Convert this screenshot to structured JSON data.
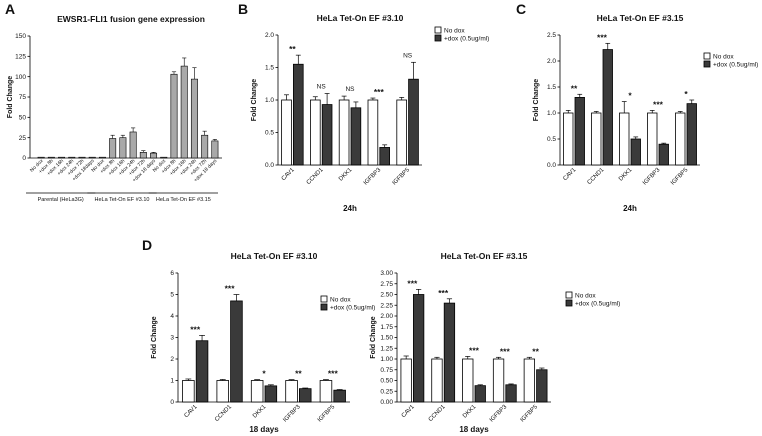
{
  "panel_labels": [
    "A",
    "B",
    "C",
    "D"
  ],
  "colors": {
    "ctrl": "#ffffff",
    "dox": "#3a3a3a",
    "gray": "#a9a9a9",
    "axis": "#000000"
  },
  "chart_data": [
    {
      "id": "A",
      "type": "bar",
      "title": "EWSR1-FLI1 fusion gene expression",
      "ylabel": "Fold Change",
      "xlabel": "",
      "ylim": [
        0,
        150
      ],
      "yticks": [
        0,
        25,
        50,
        75,
        100,
        125,
        150
      ],
      "categories": [
        "No dox",
        "+dox 8h",
        "+dox 16h",
        "+dox 24h",
        "+dox 72h",
        "+dox 18days",
        "No dox",
        "+dox 8h",
        "+dox 16h",
        "+dox 24h",
        "+dox 72h",
        "+dox 18 days",
        "No dox",
        "+dox 8h",
        "+dox 16h",
        "+dox 24h",
        "+dox 72h",
        "+dox 18 days"
      ],
      "values": [
        1,
        1,
        1,
        1,
        1,
        1,
        1,
        24,
        25,
        32,
        7,
        6,
        1,
        103,
        113,
        97,
        28,
        21
      ],
      "errors": [
        0,
        0,
        0,
        0,
        0,
        0,
        0,
        4,
        3,
        5,
        2,
        1,
        0,
        3,
        10,
        14,
        5,
        2
      ],
      "groups": [
        "Parental (HeLa3G)",
        "HeLa Tet-On EF #3.10",
        "HeLa Tet-On EF #3.15"
      ]
    },
    {
      "id": "B",
      "type": "bar",
      "title": "HeLa Tet-On EF #3.10",
      "ylabel": "Fold Change",
      "xlabel": "24h",
      "ylim": [
        0,
        2.0
      ],
      "yticks": [
        "0.0",
        "0.5",
        "1.0",
        "1.5",
        "2.0"
      ],
      "categories": [
        "CAV1",
        "CCND1",
        "DKK1",
        "IGFBP3",
        "IGFBP5"
      ],
      "series": [
        {
          "name": "No dox",
          "values": [
            1.0,
            1.0,
            1.0,
            1.0,
            1.0
          ],
          "errors": [
            0.08,
            0.05,
            0.06,
            0.03,
            0.04
          ]
        },
        {
          "name": "+dox (0.5ug/ml)",
          "values": [
            1.55,
            0.93,
            0.88,
            0.27,
            1.32
          ],
          "errors": [
            0.14,
            0.17,
            0.09,
            0.04,
            0.26
          ]
        }
      ],
      "significance": [
        "**",
        "NS",
        "NS",
        "***",
        "NS"
      ]
    },
    {
      "id": "C",
      "type": "bar",
      "title": "HeLa Tet-On EF #3.15",
      "ylabel": "Fold Change",
      "xlabel": "24h",
      "ylim": [
        0,
        2.5
      ],
      "yticks": [
        "0.0",
        "0.5",
        "1.0",
        "1.5",
        "2.0",
        "2.5"
      ],
      "categories": [
        "CAV1",
        "CCND1",
        "DKK1",
        "IGFBP3",
        "IGFBP5"
      ],
      "series": [
        {
          "name": "No dox",
          "values": [
            1.0,
            1.0,
            1.0,
            1.0,
            1.0
          ],
          "errors": [
            0.05,
            0.03,
            0.22,
            0.05,
            0.03
          ]
        },
        {
          "name": "+dox (0.5ug/ml)",
          "values": [
            1.3,
            2.22,
            0.5,
            0.4,
            1.18
          ],
          "errors": [
            0.06,
            0.12,
            0.04,
            0.02,
            0.07
          ]
        }
      ],
      "significance": [
        "**",
        "***",
        "*",
        "***",
        "*"
      ]
    },
    {
      "id": "D1",
      "type": "bar",
      "title": "HeLa Tet-On EF #3.10",
      "ylabel": "Fold Change",
      "xlabel": "18 days",
      "ylim": [
        0,
        6
      ],
      "yticks": [
        "0",
        "1",
        "2",
        "3",
        "4",
        "5",
        "6"
      ],
      "categories": [
        "CAV1",
        "CCND1",
        "DKK1",
        "IGFBP3",
        "IGFBP5"
      ],
      "series": [
        {
          "name": "No dox",
          "values": [
            1.0,
            1.0,
            1.0,
            1.0,
            1.0
          ],
          "errors": [
            0.07,
            0.05,
            0.04,
            0.04,
            0.04
          ]
        },
        {
          "name": "+dox (0.5ug/ml)",
          "values": [
            2.85,
            4.7,
            0.75,
            0.62,
            0.55
          ],
          "errors": [
            0.25,
            0.3,
            0.05,
            0.03,
            0.03
          ]
        }
      ],
      "significance": [
        "***",
        "***",
        "*",
        "**",
        "***"
      ]
    },
    {
      "id": "D2",
      "type": "bar",
      "title": "HeLa Tet-On EF #3.15",
      "ylabel": "Fold Change",
      "xlabel": "18 days",
      "ylim": [
        0,
        3.0
      ],
      "yticks": [
        "0.00",
        "0.25",
        "0.50",
        "0.75",
        "1.00",
        "1.25",
        "1.50",
        "1.75",
        "2.00",
        "2.25",
        "2.50",
        "2.75",
        "3.00"
      ],
      "categories": [
        "CAV1",
        "CCND1",
        "DKK1",
        "IGFBP3",
        "IGFBP5"
      ],
      "series": [
        {
          "name": "No dox",
          "values": [
            1.0,
            1.0,
            1.0,
            1.0,
            1.0
          ],
          "errors": [
            0.07,
            0.04,
            0.06,
            0.04,
            0.04
          ]
        },
        {
          "name": "+dox (0.5ug/ml)",
          "values": [
            2.5,
            2.3,
            0.38,
            0.4,
            0.75
          ],
          "errors": [
            0.12,
            0.1,
            0.02,
            0.02,
            0.04
          ]
        }
      ],
      "significance": [
        "***",
        "***",
        "***",
        "***",
        "**"
      ]
    }
  ]
}
